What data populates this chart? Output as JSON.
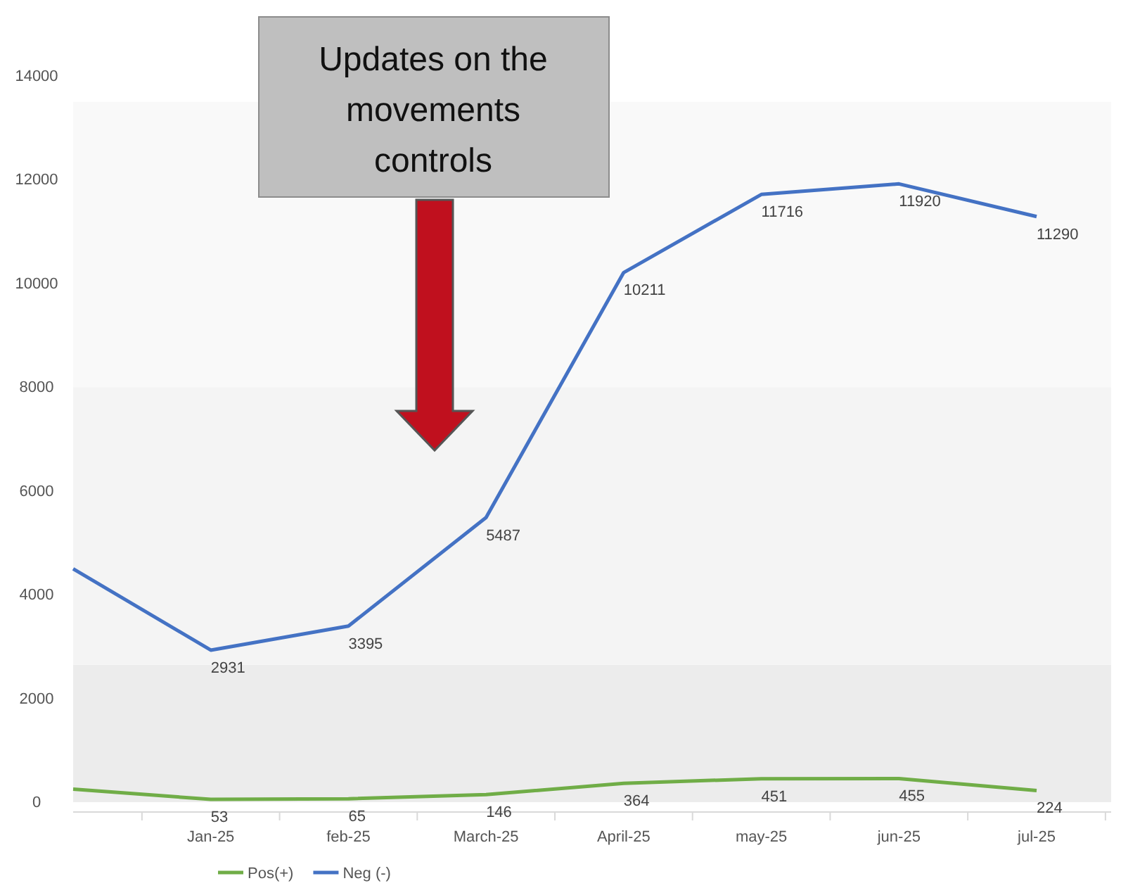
{
  "chart_data": {
    "type": "line",
    "categories": [
      null,
      "Jan-25",
      "feb-25",
      "March-25",
      "April-25",
      "may-25",
      "jun-25",
      "jul-25"
    ],
    "series": [
      {
        "name": "Pos(+)",
        "color": "#70ad47",
        "values": [
          250,
          53,
          65,
          146,
          364,
          451,
          455,
          224
        ],
        "value_labels": [
          null,
          "53",
          "65",
          "146",
          "364",
          "451",
          "455",
          "224"
        ]
      },
      {
        "name": "Neg (-)",
        "color": "#4472c4",
        "values": [
          4500,
          2931,
          3395,
          5487,
          10211,
          11716,
          11920,
          11290
        ],
        "value_labels": [
          null,
          "2931",
          "3395",
          "5487",
          "10211",
          "11716",
          "11920",
          "11290"
        ]
      }
    ],
    "ylim": [
      0,
      14000
    ],
    "yticks": [
      0,
      2000,
      4000,
      6000,
      8000,
      10000,
      12000,
      14000
    ],
    "bands": [
      {
        "axis": "y",
        "from": 0,
        "to": 2650,
        "color": "#ececec"
      },
      {
        "axis": "y",
        "from": 2650,
        "to": 8000,
        "color": "#f4f4f4"
      },
      {
        "axis": "y",
        "from": 8000,
        "to": 13500,
        "color": "#f9f9f9"
      }
    ],
    "annotations": [
      "Updates on the movements controls"
    ],
    "legend": "bottom",
    "grid": false,
    "marker": "none",
    "line_style": "solid"
  }
}
